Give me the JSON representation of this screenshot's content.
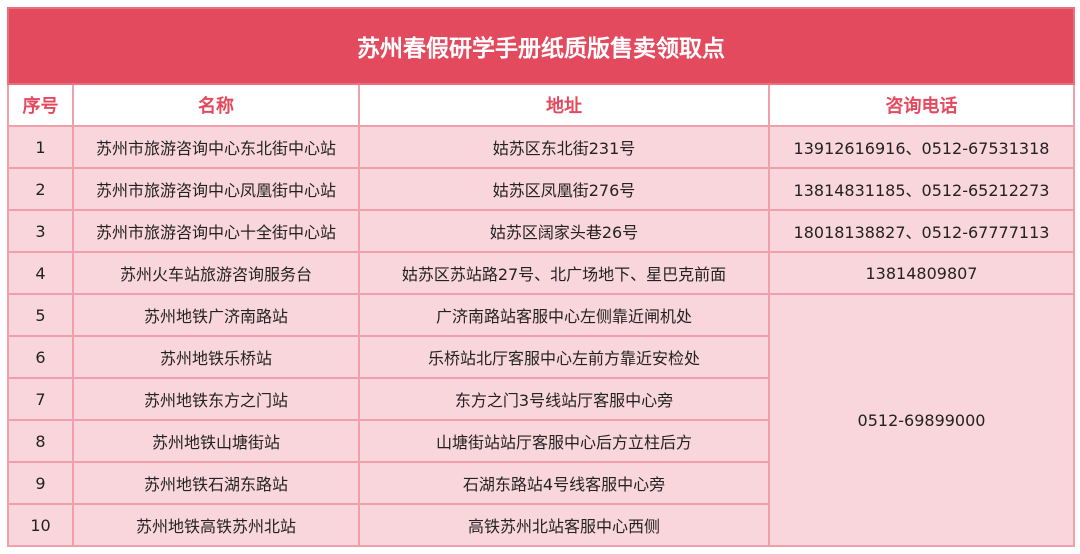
{
  "title": "苏州春假研学手册纸质版售卖领取点",
  "colors": {
    "title_bg": "#E34A5E",
    "row_bg": "#F9D6DC",
    "border": "#EFA0AB",
    "header_text": "#E34A5E"
  },
  "headers": [
    "序号",
    "名称",
    "地址",
    "咨询电话"
  ],
  "rows": [
    {
      "no": "1",
      "name": "苏州市旅游咨询中心东北街中心站",
      "address": "姑苏区东北街231号",
      "phone": "13912616916、0512-67531318"
    },
    {
      "no": "2",
      "name": "苏州市旅游咨询中心凤凰街中心站",
      "address": "姑苏区凤凰街276号",
      "phone": "13814831185、0512-65212273"
    },
    {
      "no": "3",
      "name": "苏州市旅游咨询中心十全街中心站",
      "address": "姑苏区阔家头巷26号",
      "phone": "18018138827、0512-67777113"
    },
    {
      "no": "4",
      "name": "苏州火车站旅游咨询服务台",
      "address": "姑苏区苏站路27号、北广场地下、星巴克前面",
      "phone": "13814809807"
    },
    {
      "no": "5",
      "name": "苏州地铁广济南路站",
      "address": "广济南路站客服中心左侧靠近闸机处"
    },
    {
      "no": "6",
      "name": "苏州地铁乐桥站",
      "address": "乐桥站北厅客服中心左前方靠近安检处"
    },
    {
      "no": "7",
      "name": "苏州地铁东方之门站",
      "address": "东方之门3号线站厅客服中心旁"
    },
    {
      "no": "8",
      "name": "苏州地铁山塘街站",
      "address": "山塘街站站厅客服中心后方立柱后方"
    },
    {
      "no": "9",
      "name": "苏州地铁石湖东路站",
      "address": "石湖东路站4号线客服中心旁"
    },
    {
      "no": "10",
      "name": "苏州地铁高铁苏州北站",
      "address": "高铁苏州北站客服中心西侧"
    }
  ],
  "metro_phone": "0512-69899000"
}
